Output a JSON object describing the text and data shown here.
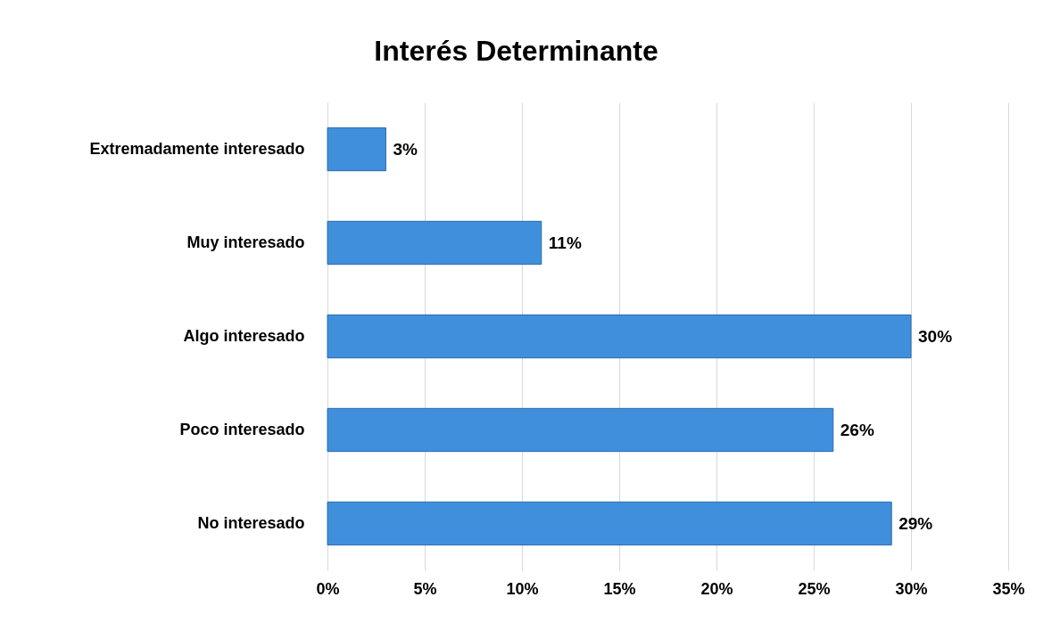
{
  "chart_data": {
    "type": "bar",
    "orientation": "horizontal",
    "title": "Interés Determinante",
    "categories": [
      "Extremadamente interesado",
      "Muy interesado",
      "Algo interesado",
      "Poco interesado",
      "No interesado"
    ],
    "values": [
      3,
      11,
      30,
      26,
      29
    ],
    "value_labels": [
      "3%",
      "11%",
      "30%",
      "26%",
      "29%"
    ],
    "color": "#3f8fdc",
    "xlim": [
      0,
      35
    ],
    "xticks": [
      {
        "value": 0,
        "label": "0%"
      },
      {
        "value": 5,
        "label": "5%"
      },
      {
        "value": 10,
        "label": "10%"
      },
      {
        "value": 15,
        "label": "15%"
      },
      {
        "value": 20,
        "label": "20%"
      },
      {
        "value": 25,
        "label": "25%"
      },
      {
        "value": 30,
        "label": "30%"
      },
      {
        "value": 35,
        "label": "35%"
      }
    ],
    "grid": "x"
  }
}
